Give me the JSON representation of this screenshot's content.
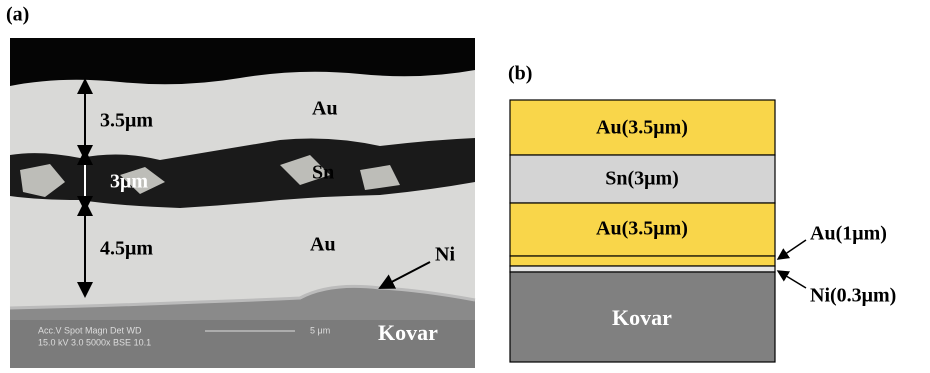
{
  "panel_a": {
    "label": "(a)",
    "thickness_labels": [
      "3.5μm",
      "3μm",
      "4.5μm"
    ],
    "layer_labels": [
      "Au",
      "Sn",
      "Au",
      "Ni",
      "Kovar"
    ],
    "info_bar": {
      "header": "Acc.V  Spot Magn    Det  WD",
      "values": "15.0 kV 3.0   5000x    BSE 10.1",
      "scale": "5 μm"
    }
  },
  "panel_b": {
    "label": "(b)",
    "layers": [
      "Au(3.5μm)",
      "Sn(3μm)",
      "Au(3.5μm)",
      "Kovar"
    ],
    "callouts": [
      "Au(1μm)",
      "Ni(0.3μm)"
    ]
  }
}
